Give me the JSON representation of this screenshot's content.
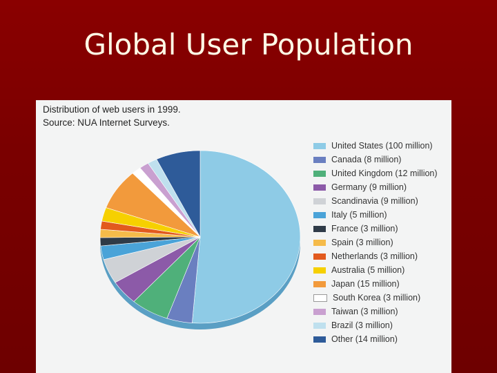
{
  "slide": {
    "title": "Global User Population"
  },
  "figure": {
    "caption_line1": "Distribution of web users in 1999.",
    "caption_line2": "Source: NUA Internet Surveys."
  },
  "chart_data": {
    "type": "pie",
    "title": "Distribution of web users in 1999.",
    "subtitle": "Source: NUA Internet Surveys.",
    "unit": "million",
    "legend_position": "right",
    "three_d": true,
    "slices": [
      {
        "name": "United States (100 million)",
        "value": 100,
        "color": "#8ecbe6"
      },
      {
        "name": "Canada (8 million)",
        "value": 8,
        "color": "#6a7fc0"
      },
      {
        "name": "United Kingdom (12 million)",
        "value": 12,
        "color": "#4fb07a"
      },
      {
        "name": "Germany (9 million)",
        "value": 9,
        "color": "#8c5aa8"
      },
      {
        "name": "Scandinavia (9 million)",
        "value": 9,
        "color": "#cfd2d6"
      },
      {
        "name": "Italy (5 million)",
        "value": 5,
        "color": "#4aa3d8"
      },
      {
        "name": "France (3 million)",
        "value": 3,
        "color": "#2f3b48"
      },
      {
        "name": "Spain (3 million)",
        "value": 3,
        "color": "#f5bb4a"
      },
      {
        "name": "Netherlands (3 million)",
        "value": 3,
        "color": "#e25a1e"
      },
      {
        "name": "Australia (5 million)",
        "value": 5,
        "color": "#f6d000"
      },
      {
        "name": "Japan (15 million)",
        "value": 15,
        "color": "#f29a3c"
      },
      {
        "name": "South Korea (3 million)",
        "value": 3,
        "color": "#ffffff"
      },
      {
        "name": "Taiwan (3 million)",
        "value": 3,
        "color": "#c9a0d0"
      },
      {
        "name": "Brazil (3 million)",
        "value": 3,
        "color": "#bfe0ee"
      },
      {
        "name": "Other (14 million)",
        "value": 14,
        "color": "#2e5b99"
      }
    ]
  }
}
